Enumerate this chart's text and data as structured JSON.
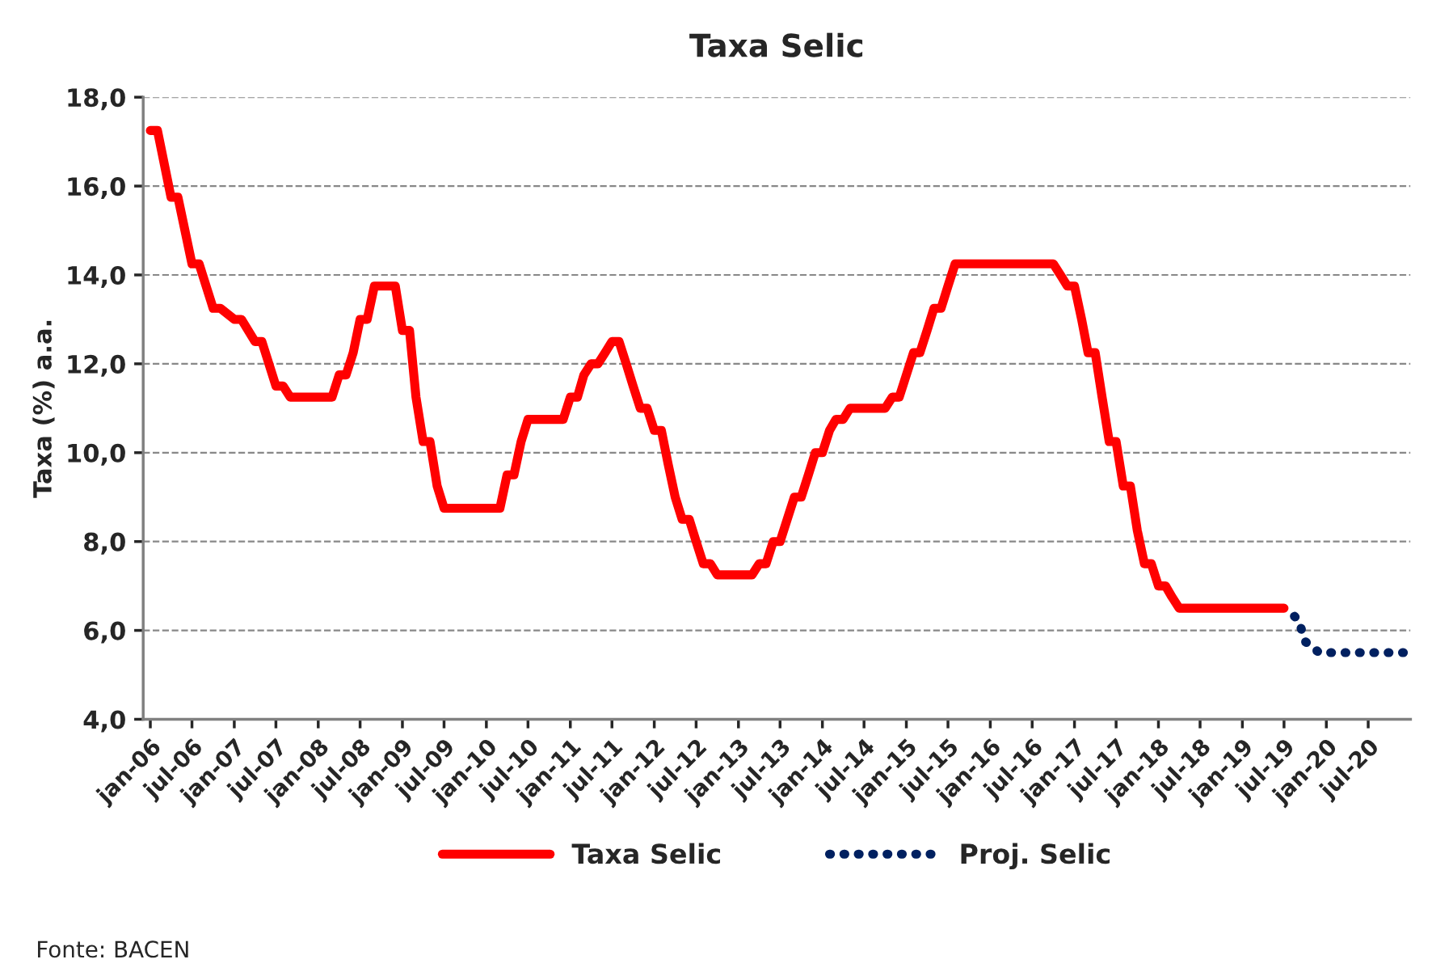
{
  "chart_data": {
    "type": "line",
    "title": "Taxa Selic",
    "ylabel": "Taxa (%) a.a.",
    "annotations": [
      "Fonte: BACEN"
    ],
    "series": [
      {
        "name": "Taxa Selic",
        "color": "#ff0000",
        "line_style": "solid",
        "x": [
          "2006-01",
          "2006-02",
          "2006-04",
          "2006-05",
          "2006-07",
          "2006-08",
          "2006-10",
          "2006-11",
          "2007-01",
          "2007-02",
          "2007-04",
          "2007-05",
          "2007-07",
          "2007-08",
          "2007-09",
          "2008-03",
          "2008-04",
          "2008-05",
          "2008-06",
          "2008-07",
          "2008-08",
          "2008-09",
          "2008-12",
          "2009-01",
          "2009-02",
          "2009-03",
          "2009-04",
          "2009-05",
          "2009-06",
          "2009-07",
          "2010-03",
          "2010-04",
          "2010-05",
          "2010-06",
          "2010-07",
          "2010-12",
          "2011-01",
          "2011-02",
          "2011-03",
          "2011-04",
          "2011-05",
          "2011-06",
          "2011-07",
          "2011-08",
          "2011-09",
          "2011-10",
          "2011-11",
          "2011-12",
          "2012-01",
          "2012-02",
          "2012-03",
          "2012-04",
          "2012-05",
          "2012-06",
          "2012-07",
          "2012-08",
          "2012-09",
          "2012-10",
          "2013-03",
          "2013-04",
          "2013-05",
          "2013-06",
          "2013-07",
          "2013-08",
          "2013-09",
          "2013-10",
          "2013-11",
          "2013-12",
          "2014-01",
          "2014-02",
          "2014-03",
          "2014-04",
          "2014-05",
          "2014-10",
          "2014-11",
          "2014-12",
          "2015-01",
          "2015-02",
          "2015-03",
          "2015-04",
          "2015-05",
          "2015-06",
          "2015-07",
          "2015-08",
          "2016-10",
          "2016-11",
          "2016-12",
          "2017-01",
          "2017-02",
          "2017-03",
          "2017-04",
          "2017-05",
          "2017-06",
          "2017-07",
          "2017-08",
          "2017-09",
          "2017-10",
          "2017-11",
          "2017-12",
          "2018-01",
          "2018-02",
          "2018-03",
          "2018-04",
          "2019-07"
        ],
        "values": [
          17.25,
          17.25,
          15.75,
          15.75,
          14.25,
          14.25,
          13.25,
          13.25,
          13.0,
          13.0,
          12.5,
          12.5,
          11.5,
          11.5,
          11.25,
          11.25,
          11.75,
          11.75,
          12.25,
          13.0,
          13.0,
          13.75,
          13.75,
          12.75,
          12.75,
          11.25,
          10.25,
          10.25,
          9.25,
          8.75,
          8.75,
          9.5,
          9.5,
          10.25,
          10.75,
          10.75,
          11.25,
          11.25,
          11.75,
          12.0,
          12.0,
          12.25,
          12.5,
          12.5,
          12.0,
          11.5,
          11.0,
          11.0,
          10.5,
          10.5,
          9.75,
          9.0,
          8.5,
          8.5,
          8.0,
          7.5,
          7.5,
          7.25,
          7.25,
          7.5,
          7.5,
          8.0,
          8.0,
          8.5,
          9.0,
          9.0,
          9.5,
          10.0,
          10.0,
          10.5,
          10.75,
          10.75,
          11.0,
          11.0,
          11.25,
          11.25,
          11.75,
          12.25,
          12.25,
          12.75,
          13.25,
          13.25,
          13.75,
          14.25,
          14.25,
          14.0,
          13.75,
          13.75,
          13.0,
          12.25,
          12.25,
          11.25,
          10.25,
          10.25,
          9.25,
          9.25,
          8.25,
          7.5,
          7.5,
          7.0,
          7.0,
          6.75,
          6.5,
          6.5
        ]
      },
      {
        "name": "Proj. Selic",
        "color": "#002060",
        "line_style": "dotted",
        "x": [
          "2019-07",
          "2019-09",
          "2019-10",
          "2019-12",
          "2020-02",
          "2020-04",
          "2020-06",
          "2020-08",
          "2020-10",
          "2020-12"
        ],
        "values": [
          6.5,
          6.25,
          5.75,
          5.5,
          5.5,
          5.5,
          5.5,
          5.5,
          5.5,
          5.5
        ]
      }
    ],
    "xlim": [
      "2005-12",
      "2021-01"
    ],
    "xticks": [
      {
        "value": "2006-01",
        "label": "jan-06"
      },
      {
        "value": "2006-07",
        "label": "jul-06"
      },
      {
        "value": "2007-01",
        "label": "jan-07"
      },
      {
        "value": "2007-07",
        "label": "jul-07"
      },
      {
        "value": "2008-01",
        "label": "jan-08"
      },
      {
        "value": "2008-07",
        "label": "jul-08"
      },
      {
        "value": "2009-01",
        "label": "jan-09"
      },
      {
        "value": "2009-07",
        "label": "jul-09"
      },
      {
        "value": "2010-01",
        "label": "jan-10"
      },
      {
        "value": "2010-07",
        "label": "jul-10"
      },
      {
        "value": "2011-01",
        "label": "jan-11"
      },
      {
        "value": "2011-07",
        "label": "jul-11"
      },
      {
        "value": "2012-01",
        "label": "jan-12"
      },
      {
        "value": "2012-07",
        "label": "jul-12"
      },
      {
        "value": "2013-01",
        "label": "jan-13"
      },
      {
        "value": "2013-07",
        "label": "jul-13"
      },
      {
        "value": "2014-01",
        "label": "jan-14"
      },
      {
        "value": "2014-07",
        "label": "jul-14"
      },
      {
        "value": "2015-01",
        "label": "jan-15"
      },
      {
        "value": "2015-07",
        "label": "jul-15"
      },
      {
        "value": "2016-01",
        "label": "jan-16"
      },
      {
        "value": "2016-07",
        "label": "jul-16"
      },
      {
        "value": "2017-01",
        "label": "jan-17"
      },
      {
        "value": "2017-07",
        "label": "jul-17"
      },
      {
        "value": "2018-01",
        "label": "jan-18"
      },
      {
        "value": "2018-07",
        "label": "jul-18"
      },
      {
        "value": "2019-01",
        "label": "jan-19"
      },
      {
        "value": "2019-07",
        "label": "jul-19"
      },
      {
        "value": "2020-01",
        "label": "jan-20"
      },
      {
        "value": "2020-07",
        "label": "jul-20"
      }
    ],
    "ylim": [
      4,
      18
    ],
    "yticks": [
      {
        "value": 4,
        "label": "4,0"
      },
      {
        "value": 6,
        "label": "6,0"
      },
      {
        "value": 8,
        "label": "8,0"
      },
      {
        "value": 10,
        "label": "10,0"
      },
      {
        "value": 12,
        "label": "12,0"
      },
      {
        "value": 14,
        "label": "14,0"
      },
      {
        "value": 16,
        "label": "16,0"
      },
      {
        "value": 18,
        "label": "18,0"
      }
    ],
    "grid": "y",
    "legend": "bottom",
    "marker": "none"
  }
}
